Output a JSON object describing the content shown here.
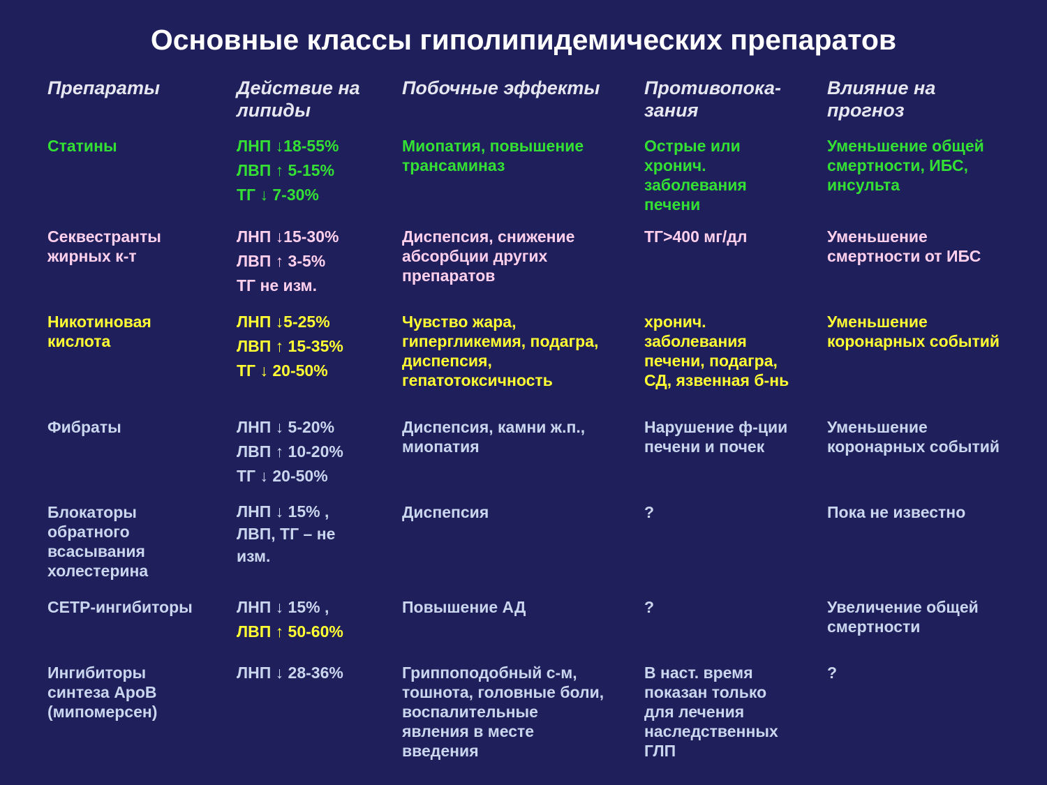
{
  "header": {
    "title": "Основные классы гиполипидемических препаратов"
  },
  "table": {
    "columns": [
      [
        "Препараты"
      ],
      [
        "Действие на",
        "липиды"
      ],
      [
        "Побочные эффекты"
      ],
      [
        "Противопока-",
        "зания"
      ],
      [
        "Влияние на",
        "прогноз"
      ]
    ],
    "rows": [
      [
        [
          "Статины"
        ],
        [
          "ЛНП ↓18-55%",
          "ЛВП ↑ 5-15%",
          "ТГ ↓ 7-30%"
        ],
        [
          "Миопатия, повышение",
          "трансаминаз"
        ],
        [
          "Острые или",
          "хронич.",
          "заболевания",
          "печени"
        ],
        [
          "Уменьшение общей",
          "смертности, ИБС,",
          "инсульта"
        ]
      ],
      [
        [
          "Секвестранты",
          "жирных к-т"
        ],
        [
          "ЛНП ↓15-30%",
          "ЛВП ↑ 3-5%",
          "ТГ не изм."
        ],
        [
          "Диспепсия, снижение",
          "абсорбции других",
          "препаратов"
        ],
        [
          "ТГ>400 мг/дл"
        ],
        [
          "Уменьшение",
          "смертности от ИБС"
        ]
      ],
      [
        [
          "Никотиновая",
          "кислота"
        ],
        [
          "ЛНП ↓5-25%",
          "ЛВП ↑ 15-35%",
          "ТГ ↓ 20-50%"
        ],
        [
          "Чувство жара,",
          "гипергликемия, подагра,",
          "диспепсия,",
          "гепатотоксичность"
        ],
        [
          "хронич.",
          "заболевания",
          "печени, подагра,",
          "СД, язвенная б-нь"
        ],
        [
          "Уменьшение",
          "коронарных событий"
        ]
      ],
      [
        [
          "Фибраты"
        ],
        [
          "ЛНП ↓ 5-20%",
          "ЛВП ↑ 10-20%",
          "ТГ ↓ 20-50%"
        ],
        [
          "Диспепсия, камни ж.п.,",
          "миопатия"
        ],
        [
          "Нарушение ф-ции",
          "печени и почек"
        ],
        [
          "Уменьшение",
          "коронарных событий"
        ]
      ],
      [
        [
          "Блокаторы",
          "обратного",
          "всасывания",
          "холестерина"
        ],
        [
          "ЛНП ↓ 15% ,",
          "ЛВП, ТГ – не",
          "изм."
        ],
        [
          "Диспепсия"
        ],
        [
          "?"
        ],
        [
          "Пока не известно"
        ]
      ],
      [
        [
          "CETP-ингибиторы"
        ],
        [
          "ЛНП ↓ 15% ,",
          "ЛВП ↑ 50-60%"
        ],
        [
          "Повышение АД"
        ],
        [
          "?"
        ],
        [
          "Увеличение общей",
          "смертности"
        ]
      ],
      [
        [
          "Ингибиторы",
          "синтеза АроВ",
          "(мипомерсен)"
        ],
        [
          "ЛНП ↓ 28-36%"
        ],
        [
          "Гриппоподобный с-м,",
          "тошнота, головные боли,",
          "воспалительные",
          "явления в месте",
          "введения"
        ],
        [
          "В наст. время",
          "показан только",
          "для  лечения",
          "наследственных",
          "ГЛП"
        ],
        [
          "?"
        ]
      ]
    ]
  }
}
